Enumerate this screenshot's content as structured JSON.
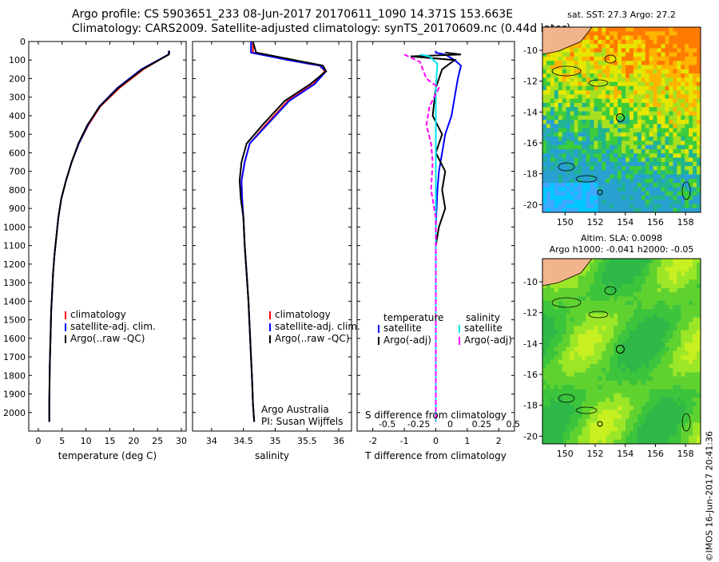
{
  "header": {
    "line1": "Argo profile: CS 5903651_233 08-Jun-2017 20170611_1090 14.371S 153.663E",
    "line2": "Climatology: CARS2009. Satellite-adjusted climatology: synTS_20170609.nc (0.44d later)"
  },
  "colors": {
    "climatology": "#ff0000",
    "satellite": "#0000ff",
    "argo": "#000000",
    "sat_salinity": "#00e5ee",
    "argo_salinity": "#ff00ff"
  },
  "chart_data": [
    {
      "type": "line",
      "panel": "temperature",
      "xlabel": "temperature (deg C)",
      "ylabel": "",
      "xlim": [
        -2,
        31
      ],
      "ylim": [
        2100,
        0
      ],
      "xticks": [
        0,
        5,
        10,
        15,
        20,
        25,
        30
      ],
      "yticks": [
        0,
        100,
        200,
        300,
        400,
        500,
        600,
        700,
        800,
        900,
        1000,
        1100,
        1200,
        1300,
        1400,
        1500,
        1600,
        1700,
        1800,
        1900,
        2000
      ],
      "legend": [
        "climatology",
        "satellite-adj. clim.",
        "Argo(..raw -QC)"
      ],
      "series": [
        {
          "name": "climatology",
          "color_key": "climatology",
          "x": [
            27.4,
            27.3,
            22,
            17,
            13,
            10.5,
            8.5,
            7,
            5.8,
            4.8,
            4.2,
            3.8,
            3.4,
            3.1,
            2.9,
            2.7,
            2.6,
            2.5,
            2.4,
            2.35,
            2.3,
            2.3
          ],
          "y": [
            50,
            70,
            150,
            250,
            350,
            450,
            550,
            650,
            750,
            850,
            950,
            1050,
            1150,
            1250,
            1350,
            1450,
            1550,
            1650,
            1750,
            1850,
            1950,
            2050
          ]
        },
        {
          "name": "satellite-adj. clim.",
          "color_key": "satellite",
          "x": [
            27.4,
            27.3,
            21.6,
            16.6,
            12.8,
            10.4,
            8.5,
            7,
            5.8,
            4.8,
            4.2,
            3.8,
            3.4,
            3.1,
            2.9,
            2.7,
            2.6,
            2.5,
            2.4,
            2.35,
            2.3,
            2.3
          ],
          "y": [
            50,
            70,
            150,
            250,
            350,
            450,
            550,
            650,
            750,
            850,
            950,
            1050,
            1150,
            1250,
            1350,
            1450,
            1550,
            1650,
            1750,
            1850,
            1950,
            2050
          ]
        },
        {
          "name": "Argo(..raw -QC)",
          "color_key": "argo",
          "x": [
            27.5,
            27.4,
            21.8,
            16.8,
            12.9,
            10.3,
            8.4,
            7,
            5.8,
            4.8,
            4.2,
            3.8,
            3.4,
            3.1,
            2.9,
            2.7,
            2.6,
            2.5,
            2.4,
            2.35,
            2.3,
            2.3
          ],
          "y": [
            50,
            70,
            150,
            250,
            350,
            450,
            550,
            650,
            750,
            850,
            950,
            1050,
            1150,
            1250,
            1350,
            1450,
            1550,
            1650,
            1750,
            1850,
            1950,
            2050
          ]
        }
      ]
    },
    {
      "type": "line",
      "panel": "salinity",
      "xlabel": "salinity",
      "ylabel": "",
      "xlim": [
        33.7,
        36.2
      ],
      "ylim": [
        2100,
        0
      ],
      "xticks": [
        34,
        34.5,
        35,
        35.5,
        36
      ],
      "xticklabels": [
        "34",
        "34.5",
        "35",
        "35.5",
        "36"
      ],
      "legend": [
        "climatology",
        "satellite-adj. clim.",
        "Argo(..raw -QC)"
      ],
      "annotations": [
        "Argo Australia",
        "PI: Susan Wijffels"
      ],
      "series": [
        {
          "name": "climatology",
          "color_key": "climatology",
          "x": [
            34.65,
            34.65,
            35.2,
            35.7,
            35.78,
            35.6,
            35.2,
            34.85,
            34.6,
            34.52,
            34.47,
            34.48,
            34.5,
            34.52,
            34.55,
            34.58,
            34.6,
            34.62,
            34.64,
            34.65,
            34.66,
            34.67
          ],
          "y": [
            0,
            60,
            100,
            130,
            160,
            230,
            320,
            450,
            550,
            650,
            750,
            850,
            950,
            1100,
            1250,
            1400,
            1550,
            1700,
            1850,
            1950,
            2000,
            2050
          ]
        },
        {
          "name": "satellite-adj. clim.",
          "color_key": "satellite",
          "x": [
            34.62,
            34.62,
            35.2,
            35.7,
            35.8,
            35.62,
            35.22,
            34.87,
            34.6,
            34.52,
            34.47,
            34.48,
            34.5,
            34.52,
            34.55,
            34.58,
            34.6,
            34.62,
            34.64,
            34.65,
            34.66,
            34.67
          ],
          "y": [
            0,
            60,
            100,
            130,
            160,
            230,
            320,
            450,
            550,
            650,
            750,
            850,
            950,
            1100,
            1250,
            1400,
            1550,
            1700,
            1850,
            1950,
            2000,
            2050
          ]
        },
        {
          "name": "Argo(..raw -QC)",
          "color_key": "argo",
          "x": [
            34.65,
            34.7,
            35.3,
            35.75,
            35.8,
            35.55,
            35.15,
            34.8,
            34.55,
            34.47,
            34.44,
            34.46,
            34.5,
            34.52,
            34.55,
            34.58,
            34.6,
            34.62,
            34.64,
            34.65,
            34.66,
            34.67
          ],
          "y": [
            0,
            60,
            100,
            130,
            160,
            230,
            320,
            450,
            550,
            650,
            750,
            850,
            950,
            1100,
            1250,
            1400,
            1550,
            1700,
            1850,
            1950,
            2000,
            2050
          ]
        }
      ]
    },
    {
      "type": "line",
      "panel": "difference",
      "xlabel": "T difference from climatology",
      "xlabel_top": "S difference from climatology",
      "xlim": [
        -2.5,
        2.5
      ],
      "ylim": [
        2100,
        0
      ],
      "xticks_T": [
        -2,
        -1,
        0,
        1,
        2
      ],
      "xticks_S": [
        -0.5,
        -0.25,
        0,
        0.25,
        0.5
      ],
      "xticklabels_S": [
        "-0.5",
        "-0.25",
        "0",
        "0.25",
        "0.5"
      ],
      "legend_temperature": {
        "title": "temperature",
        "items": [
          "satellite",
          "Argo(-adj)"
        ]
      },
      "legend_salinity": {
        "title": "salinity",
        "items": [
          "satellite",
          "Argo(-adj)"
        ]
      },
      "series": [
        {
          "name": "temperature satellite",
          "color_key": "satellite",
          "x": [
            0,
            0,
            0.3,
            0.6,
            0.8,
            0.7,
            0.6,
            0.5,
            0.3,
            0.2,
            0.1,
            0.05,
            0,
            0,
            0,
            0,
            0,
            0,
            0,
            0
          ],
          "y": [
            50,
            60,
            70,
            100,
            130,
            200,
            300,
            400,
            500,
            600,
            700,
            800,
            1000,
            1200,
            1400,
            1600,
            1800,
            1900,
            2000,
            2050
          ]
        },
        {
          "name": "temperature Argo(-adj)",
          "color_key": "argo",
          "x": [
            0.3,
            0.8,
            -0.8,
            0.6,
            0.2,
            0,
            -0.1,
            0.2,
            0,
            0.3,
            0.2,
            0.3,
            0.1,
            0,
            0,
            0,
            0,
            0,
            0,
            0
          ],
          "y": [
            60,
            70,
            80,
            100,
            150,
            250,
            400,
            500,
            600,
            700,
            800,
            900,
            1000,
            1100,
            1300,
            1500,
            1700,
            1900,
            2000,
            2050
          ]
        },
        {
          "name": "salinity satellite",
          "color_key": "sat_salinity",
          "x": [
            -0.5,
            -0.2,
            0.05,
            0,
            0,
            0,
            0,
            0,
            0,
            0,
            0,
            0,
            0,
            0
          ],
          "y": [
            70,
            80,
            120,
            250,
            400,
            600,
            800,
            1000,
            1200,
            1400,
            1600,
            1800,
            2000,
            2050
          ]
        },
        {
          "name": "salinity Argo(-adj)",
          "color_key": "argo_salinity",
          "x": [
            -1,
            -0.5,
            -0.3,
            0.1,
            -0.2,
            -0.3,
            -0.15,
            -0.1,
            -0.15,
            0,
            0,
            0,
            0,
            0,
            0
          ],
          "y": [
            70,
            110,
            200,
            250,
            350,
            450,
            550,
            650,
            800,
            950,
            1200,
            1500,
            1800,
            2000,
            2050
          ]
        }
      ]
    },
    {
      "type": "heatmap",
      "panel": "sst_map",
      "title": "sat. SST: 27.3 Argo: 27.2",
      "xticks": [
        150,
        152,
        154,
        156,
        158
      ],
      "yticks": [
        -10,
        -12,
        -14,
        -16,
        -18,
        -20
      ],
      "xlim": [
        148.5,
        159
      ],
      "ylim": [
        -20.5,
        -8.5
      ],
      "marker": {
        "lon": 153.663,
        "lat": -14.371
      }
    },
    {
      "type": "heatmap",
      "panel": "sla_map",
      "title": "Altim. SLA: 0.0098",
      "subtitle": "Argo h1000: -0.041 h2000: -0.05",
      "xticks": [
        150,
        152,
        154,
        156,
        158
      ],
      "yticks": [
        -10,
        -12,
        -14,
        -16,
        -18,
        -20
      ],
      "xlim": [
        148.5,
        159
      ],
      "ylim": [
        -20.5,
        -8.5
      ],
      "marker": {
        "lon": 153.663,
        "lat": -14.371
      }
    }
  ],
  "credit": "©IMOS 16-Jun-2017 20:41:36"
}
